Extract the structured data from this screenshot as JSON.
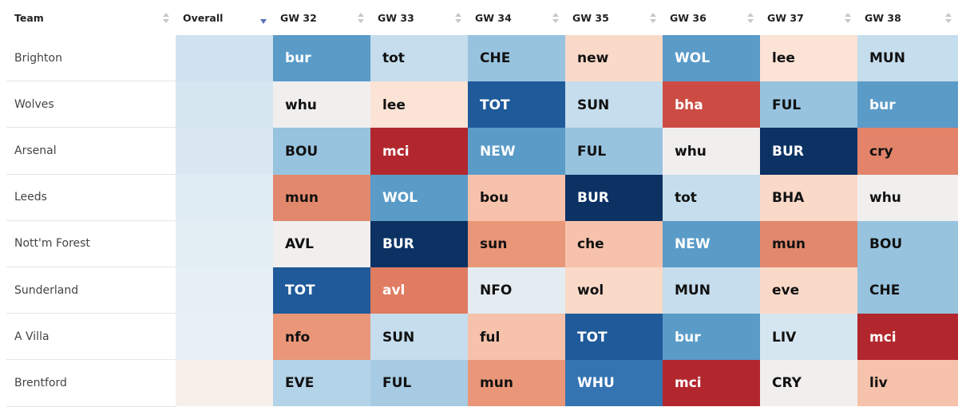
{
  "table": {
    "headers": [
      "Team",
      "Overall",
      "GW 32",
      "GW 33",
      "GW 34",
      "GW 35",
      "GW 36",
      "GW 37",
      "GW 38"
    ],
    "sorted_column": 1,
    "rows": [
      {
        "team": "Brighton",
        "overall_color": "#cfe2ef",
        "cells": [
          {
            "text": "bur",
            "color": "#5a9bc8",
            "text_color": "#fff"
          },
          {
            "text": "tot",
            "color": "#c5ddec",
            "text_color": "#111"
          },
          {
            "text": "CHE",
            "color": "#97c3df",
            "text_color": "#111"
          },
          {
            "text": "new",
            "color": "#fad9c8",
            "text_color": "#111"
          },
          {
            "text": "WOL",
            "color": "#5a9bc8",
            "text_color": "#fff"
          },
          {
            "text": "lee",
            "color": "#fbe3d6",
            "text_color": "#111"
          },
          {
            "text": "MUN",
            "color": "#c5ddec",
            "text_color": "#111"
          }
        ]
      },
      {
        "team": "Wolves",
        "overall_color": "#d6e6f1",
        "cells": [
          {
            "text": "whu",
            "color": "#f0efee",
            "text_color": "#111"
          },
          {
            "text": "lee",
            "color": "#fbe3d6",
            "text_color": "#111"
          },
          {
            "text": "TOT",
            "color": "#1f5a9a",
            "text_color": "#fff"
          },
          {
            "text": "SUN",
            "color": "#c5ddec",
            "text_color": "#111"
          },
          {
            "text": "bha",
            "color": "#cc4c44",
            "text_color": "#fff"
          },
          {
            "text": "FUL",
            "color": "#97c3df",
            "text_color": "#111"
          },
          {
            "text": "bur",
            "color": "#5a9bc8",
            "text_color": "#fff"
          }
        ]
      },
      {
        "team": "Arsenal",
        "overall_color": "#d9e8f2",
        "cells": [
          {
            "text": "BOU",
            "color": "#97c3df",
            "text_color": "#111"
          },
          {
            "text": "mci",
            "color": "#b2272d",
            "text_color": "#fff"
          },
          {
            "text": "NEW",
            "color": "#5a9bc8",
            "text_color": "#fff"
          },
          {
            "text": "FUL",
            "color": "#97c3df",
            "text_color": "#111"
          },
          {
            "text": "whu",
            "color": "#f0efee",
            "text_color": "#111"
          },
          {
            "text": "BUR",
            "color": "#0b3263",
            "text_color": "#fff"
          },
          {
            "text": "cry",
            "color": "#e2836a",
            "text_color": "#111"
          }
        ]
      },
      {
        "team": "Leeds",
        "overall_color": "#e0ecf4",
        "cells": [
          {
            "text": "mun",
            "color": "#e2886c",
            "text_color": "#111"
          },
          {
            "text": "WOL",
            "color": "#5a9bc8",
            "text_color": "#fff"
          },
          {
            "text": "bou",
            "color": "#f6c2ab",
            "text_color": "#111"
          },
          {
            "text": "BUR",
            "color": "#0b3263",
            "text_color": "#fff"
          },
          {
            "text": "tot",
            "color": "#c5ddec",
            "text_color": "#111"
          },
          {
            "text": "BHA",
            "color": "#fad9c8",
            "text_color": "#111"
          },
          {
            "text": "whu",
            "color": "#f0efee",
            "text_color": "#111"
          }
        ]
      },
      {
        "team": "Nott'm Forest",
        "overall_color": "#e3edf4",
        "cells": [
          {
            "text": "AVL",
            "color": "#f0efee",
            "text_color": "#111"
          },
          {
            "text": "BUR",
            "color": "#0b3263",
            "text_color": "#fff"
          },
          {
            "text": "sun",
            "color": "#e99778",
            "text_color": "#111"
          },
          {
            "text": "che",
            "color": "#f6c2ab",
            "text_color": "#111"
          },
          {
            "text": "NEW",
            "color": "#5a9bc8",
            "text_color": "#fff"
          },
          {
            "text": "mun",
            "color": "#e2886c",
            "text_color": "#111"
          },
          {
            "text": "BOU",
            "color": "#97c3df",
            "text_color": "#111"
          }
        ]
      },
      {
        "team": "Sunderland",
        "overall_color": "#e6eff5",
        "cells": [
          {
            "text": "TOT",
            "color": "#1f5a9a",
            "text_color": "#fff"
          },
          {
            "text": "avl",
            "color": "#df7c62",
            "text_color": "#fff"
          },
          {
            "text": "NFO",
            "color": "#e4ecf2",
            "text_color": "#111"
          },
          {
            "text": "wol",
            "color": "#fad9c8",
            "text_color": "#111"
          },
          {
            "text": "MUN",
            "color": "#c5ddec",
            "text_color": "#111"
          },
          {
            "text": "eve",
            "color": "#fad9c8",
            "text_color": "#111"
          },
          {
            "text": "CHE",
            "color": "#97c3df",
            "text_color": "#111"
          }
        ]
      },
      {
        "team": "A Villa",
        "overall_color": "#e9f0f5",
        "cells": [
          {
            "text": "nfo",
            "color": "#e99778",
            "text_color": "#111"
          },
          {
            "text": "SUN",
            "color": "#c5ddec",
            "text_color": "#111"
          },
          {
            "text": "ful",
            "color": "#f6c2ab",
            "text_color": "#111"
          },
          {
            "text": "TOT",
            "color": "#1f5a9a",
            "text_color": "#fff"
          },
          {
            "text": "bur",
            "color": "#5a9bc8",
            "text_color": "#fff"
          },
          {
            "text": "LIV",
            "color": "#d6e6f1",
            "text_color": "#111"
          },
          {
            "text": "mci",
            "color": "#b2272d",
            "text_color": "#fff"
          }
        ]
      },
      {
        "team": "Brentford",
        "overall_color": "#f7efe9",
        "cells": [
          {
            "text": "EVE",
            "color": "#b3d3e8",
            "text_color": "#111"
          },
          {
            "text": "FUL",
            "color": "#a6cbe3",
            "text_color": "#111"
          },
          {
            "text": "mun",
            "color": "#e99778",
            "text_color": "#111"
          },
          {
            "text": "WHU",
            "color": "#3474b1",
            "text_color": "#fff"
          },
          {
            "text": "mci",
            "color": "#b2272d",
            "text_color": "#fff"
          },
          {
            "text": "CRY",
            "color": "#f0efee",
            "text_color": "#111"
          },
          {
            "text": "liv",
            "color": "#f6c2ab",
            "text_color": "#111"
          }
        ]
      }
    ]
  }
}
